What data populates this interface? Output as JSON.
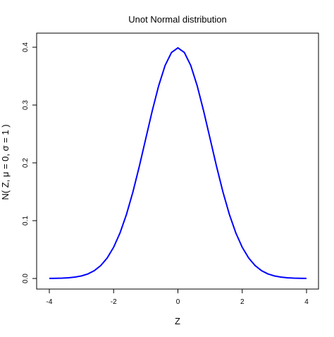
{
  "chart_data": {
    "type": "line",
    "title": "Unot Normal distribution",
    "xlabel": "Z",
    "ylabel": "N( Z, μ = 0, σ = 1 )",
    "xlim": [
      -4,
      4
    ],
    "ylim": [
      0,
      0.4
    ],
    "x_ticks": [
      -4,
      -2,
      0,
      2,
      4
    ],
    "x_tick_labels": [
      "-4",
      "-2",
      "0",
      "2",
      "4"
    ],
    "y_ticks": [
      0.0,
      0.1,
      0.2,
      0.3,
      0.4
    ],
    "y_tick_labels": [
      "0.0",
      "0.1",
      "0.2",
      "0.3",
      "0.4"
    ],
    "grid": false,
    "legend": "none",
    "line_color": "#0000ff",
    "series": [
      {
        "x": [
          -4.0,
          -3.8,
          -3.6,
          -3.4,
          -3.2,
          -3.0,
          -2.8,
          -2.6,
          -2.4,
          -2.2,
          -2.0,
          -1.8,
          -1.6,
          -1.4,
          -1.2,
          -1.0,
          -0.8,
          -0.6,
          -0.4,
          -0.2,
          0.0,
          0.2,
          0.4,
          0.6,
          0.8,
          1.0,
          1.2,
          1.4,
          1.6,
          1.8,
          2.0,
          2.2,
          2.4,
          2.6,
          2.8,
          3.0,
          3.2,
          3.4,
          3.6,
          3.8,
          4.0
        ],
        "values": [
          0.0001,
          0.0003,
          0.0006,
          0.0012,
          0.0024,
          0.0044,
          0.0079,
          0.0136,
          0.0224,
          0.0355,
          0.054,
          0.079,
          0.1109,
          0.1497,
          0.1942,
          0.242,
          0.2897,
          0.3332,
          0.3683,
          0.391,
          0.3989,
          0.391,
          0.3683,
          0.3332,
          0.2897,
          0.242,
          0.1942,
          0.1497,
          0.1109,
          0.079,
          0.054,
          0.0355,
          0.0224,
          0.0136,
          0.0079,
          0.0044,
          0.0024,
          0.0012,
          0.0006,
          0.0003,
          0.0001
        ]
      }
    ]
  }
}
